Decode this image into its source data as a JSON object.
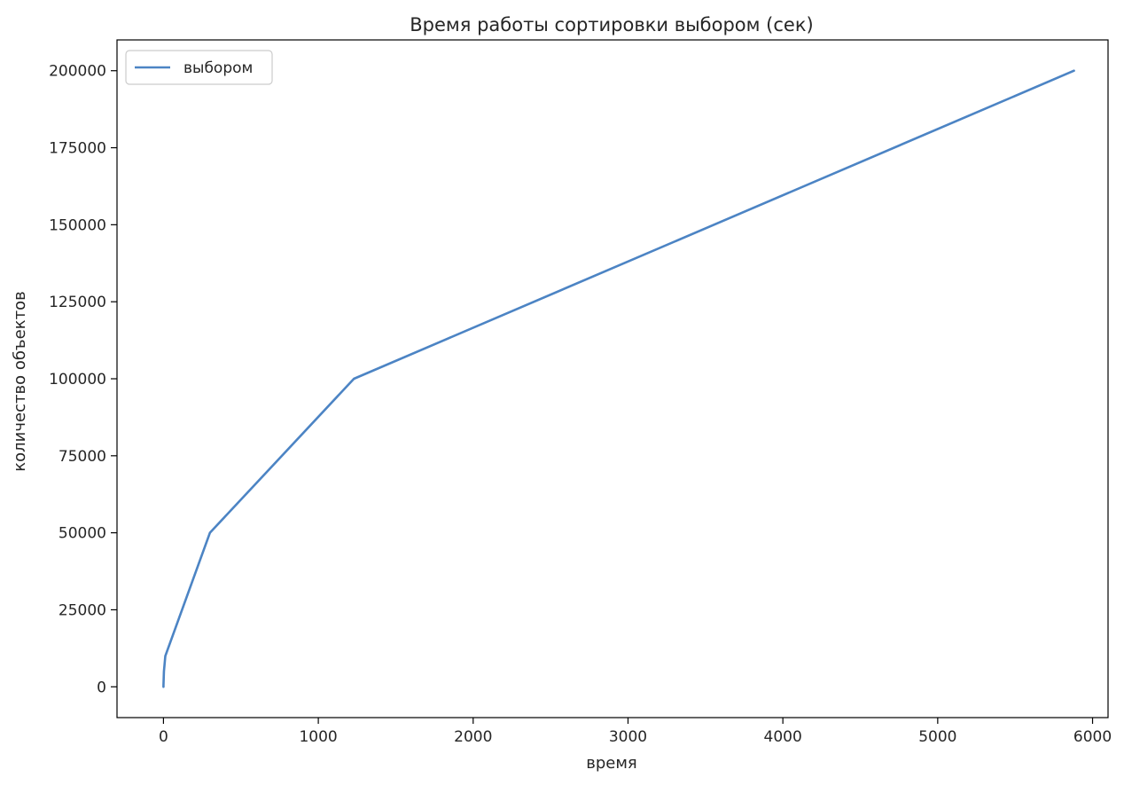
{
  "chart_data": {
    "type": "line",
    "title": "Время работы сортировки выбором (сек)",
    "xlabel": "время",
    "ylabel": "количество объектов",
    "xlim": [
      -300,
      6100
    ],
    "ylim": [
      -10000,
      210000
    ],
    "xticks": [
      0,
      1000,
      2000,
      3000,
      4000,
      5000,
      6000
    ],
    "yticks": [
      0,
      25000,
      50000,
      75000,
      100000,
      125000,
      150000,
      175000,
      200000
    ],
    "grid": false,
    "legend_position": "upper-left",
    "series": [
      {
        "name": "выбором",
        "color": "#4c84c4",
        "x": [
          0,
          0.02,
          3,
          12,
          300,
          1230,
          5880
        ],
        "y": [
          0,
          500,
          5000,
          10000,
          50000,
          100000,
          200000
        ]
      }
    ]
  }
}
